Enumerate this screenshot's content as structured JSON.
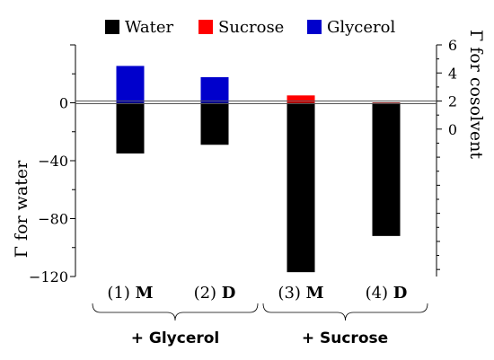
{
  "chart_data": {
    "type": "bar",
    "categories": [
      {
        "prefix": "(1) ",
        "bold": "M"
      },
      {
        "prefix": "(2) ",
        "bold": "D"
      },
      {
        "prefix": "(3) ",
        "bold": "M"
      },
      {
        "prefix": "(4) ",
        "bold": "D"
      }
    ],
    "groups": [
      {
        "label": "+ Glycerol",
        "categories": [
          0,
          1
        ]
      },
      {
        "label": "+ Sucrose",
        "categories": [
          2,
          3
        ]
      }
    ],
    "series": [
      {
        "name": "Water",
        "color": "#000000",
        "axis": "left",
        "values": [
          -35,
          -29,
          -117,
          -92
        ]
      },
      {
        "name": "Sucrose",
        "color": "#ff0000",
        "axis": "right",
        "values": [
          null,
          null,
          2.4,
          1.9
        ]
      },
      {
        "name": "Glycerol",
        "color": "#0000cc",
        "axis": "right",
        "values": [
          4.5,
          3.7,
          null,
          null
        ]
      }
    ],
    "y_left": {
      "label": "Γ for water",
      "ticks": [
        "0",
        "−40",
        "−80",
        "−120"
      ],
      "tick_values": [
        0,
        -40,
        -80,
        -120
      ],
      "range": [
        -120,
        40
      ]
    },
    "y_right": {
      "label": "Γ for cosolvent",
      "ticks": [
        "0",
        "2",
        "4",
        "6"
      ],
      "tick_values": [
        0,
        2,
        4,
        6
      ],
      "range": [
        -10.5,
        6
      ]
    },
    "legend_position": "top"
  }
}
